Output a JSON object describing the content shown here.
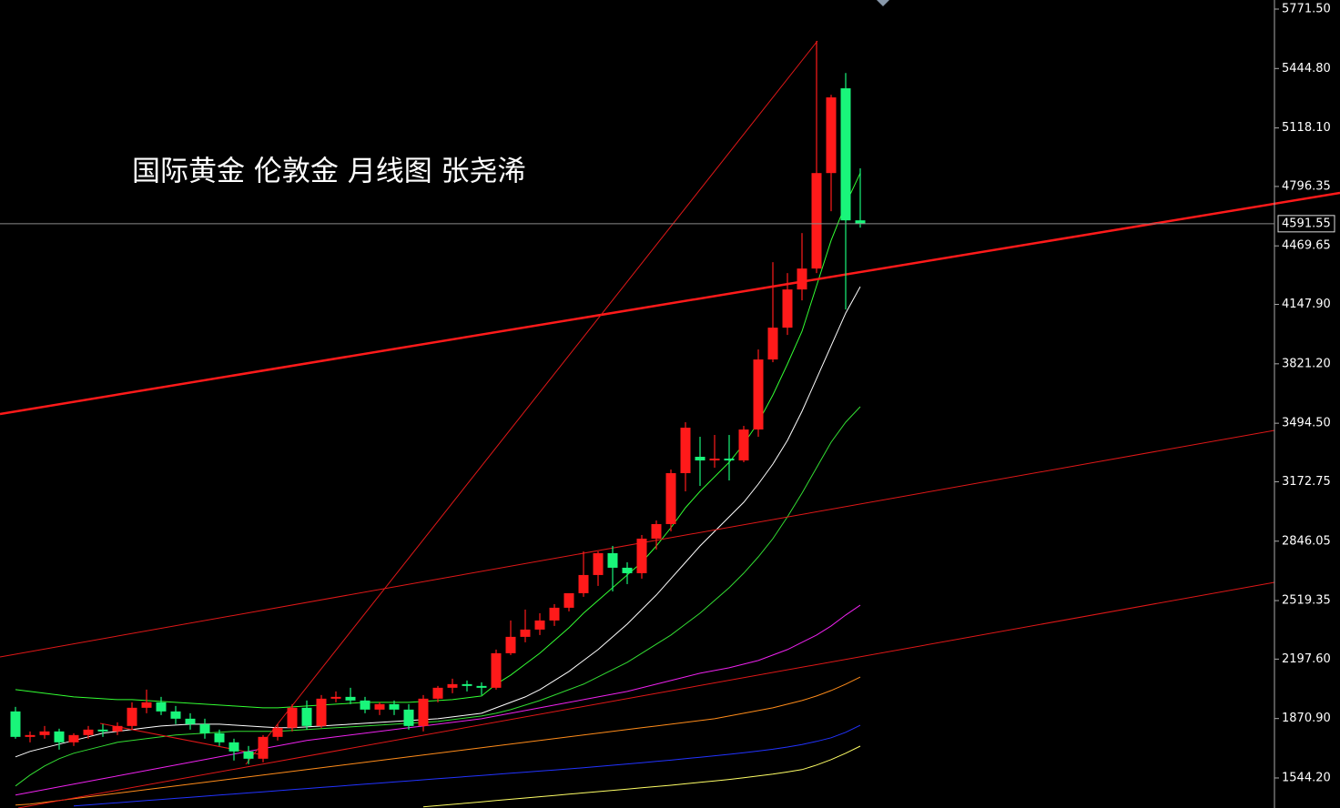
{
  "chart_data": {
    "type": "candlestick",
    "title": "国际黄金 伦敦金  月线图 张尧浠",
    "ylim": [
      1379,
      5821.5
    ],
    "yticks": [
      {
        "value": 5771.5,
        "label": "5771.50"
      },
      {
        "value": 5444.8,
        "label": "5444.80"
      },
      {
        "value": 5118.1,
        "label": "5118.10"
      },
      {
        "value": 4796.35,
        "label": "4796.35"
      },
      {
        "value": 4469.65,
        "label": "4469.65"
      },
      {
        "value": 4147.9,
        "label": "4147.90"
      },
      {
        "value": 3821.2,
        "label": "3821.20"
      },
      {
        "value": 3494.5,
        "label": "3494.50"
      },
      {
        "value": 3172.75,
        "label": "3172.75"
      },
      {
        "value": 2846.05,
        "label": "2846.05"
      },
      {
        "value": 2519.35,
        "label": "2519.35"
      },
      {
        "value": 2197.6,
        "label": "2197.60"
      },
      {
        "value": 1870.9,
        "label": "1870.90"
      },
      {
        "value": 1544.2,
        "label": "1544.20"
      }
    ],
    "last_price": 4591.55,
    "up_color": "#ff1a1a",
    "down_color": "#19f57a",
    "open": [
      1910,
      1770,
      1780,
      1800,
      1740,
      1780,
      1810,
      1800,
      1830,
      1930,
      1960,
      1910,
      1870,
      1840,
      1790,
      1740,
      1690,
      1650,
      1770,
      1820,
      1930,
      1830,
      1980,
      1990,
      1970,
      1920,
      1950,
      1920,
      1830,
      1980,
      2040,
      2060,
      2050,
      2040,
      2230,
      2320,
      2360,
      2410,
      2480,
      2560,
      2660,
      2780,
      2700,
      2670,
      2860,
      2940,
      3220,
      3310,
      3290,
      3300,
      3290,
      3460,
      3845,
      4020,
      4230,
      4345,
      4870,
      5336,
      4610
    ],
    "high": [
      1935,
      1800,
      1830,
      1815,
      1790,
      1830,
      1840,
      1850,
      1960,
      2030,
      1990,
      1940,
      1900,
      1870,
      1810,
      1760,
      1720,
      1780,
      1840,
      1950,
      1970,
      2000,
      2020,
      2040,
      1990,
      1960,
      1970,
      1950,
      2000,
      2050,
      2090,
      2080,
      2070,
      2250,
      2410,
      2470,
      2450,
      2500,
      2560,
      2790,
      2790,
      2820,
      2730,
      2880,
      2960,
      3240,
      3500,
      3420,
      3430,
      3430,
      3480,
      3900,
      4380,
      4320,
      4540,
      5596,
      5300,
      5420,
      4896
    ],
    "low": [
      1760,
      1740,
      1760,
      1700,
      1720,
      1760,
      1770,
      1780,
      1810,
      1900,
      1890,
      1840,
      1810,
      1760,
      1720,
      1640,
      1620,
      1630,
      1750,
      1800,
      1810,
      1820,
      1960,
      1950,
      1900,
      1890,
      1890,
      1810,
      1800,
      1960,
      2010,
      2020,
      2000,
      2030,
      2220,
      2290,
      2330,
      2380,
      2460,
      2540,
      2600,
      2570,
      2610,
      2640,
      2800,
      2900,
      3120,
      3150,
      3250,
      3180,
      3280,
      3420,
      3830,
      3980,
      4170,
      4320,
      4660,
      4120,
      4570
    ],
    "close": [
      1770,
      1780,
      1800,
      1740,
      1780,
      1810,
      1800,
      1830,
      1930,
      1960,
      1910,
      1870,
      1840,
      1790,
      1740,
      1690,
      1650,
      1770,
      1820,
      1930,
      1830,
      1980,
      1990,
      1970,
      1920,
      1950,
      1920,
      1830,
      1980,
      2040,
      2060,
      2050,
      2040,
      2230,
      2320,
      2360,
      2410,
      2480,
      2560,
      2660,
      2780,
      2700,
      2670,
      2860,
      2940,
      3220,
      3470,
      3290,
      3300,
      3290,
      3460,
      3845,
      4020,
      4230,
      4345,
      4870,
      5286,
      4610,
      4591.55
    ],
    "lines": [
      {
        "color": "#33ff33",
        "values": [
          2030,
          2020,
          2010,
          2000,
          1990,
          1985,
          1980,
          1975,
          1975,
          1970,
          1965,
          1960,
          1955,
          1950,
          1945,
          1940,
          1935,
          1930,
          1930,
          1935,
          1940,
          1945,
          1950,
          1955,
          1960,
          1960,
          1960,
          1960,
          1965,
          1970,
          1975,
          1985,
          1995,
          2060,
          2110,
          2170,
          2230,
          2300,
          2370,
          2450,
          2520,
          2590,
          2660,
          2730,
          2820,
          2920,
          3030,
          3120,
          3200,
          3280,
          3380,
          3500,
          3650,
          3820,
          4000,
          4250,
          4500,
          4700,
          4870
        ]
      },
      {
        "color": "#ffffff",
        "values": [
          1660,
          1690,
          1710,
          1730,
          1750,
          1770,
          1790,
          1800,
          1810,
          1820,
          1830,
          1835,
          1840,
          1840,
          1840,
          1835,
          1830,
          1825,
          1820,
          1820,
          1825,
          1830,
          1835,
          1840,
          1845,
          1850,
          1855,
          1860,
          1865,
          1870,
          1880,
          1890,
          1900,
          1930,
          1960,
          1990,
          2030,
          2080,
          2130,
          2190,
          2250,
          2320,
          2390,
          2470,
          2550,
          2640,
          2730,
          2820,
          2900,
          2980,
          3060,
          3160,
          3270,
          3400,
          3560,
          3740,
          3920,
          4100,
          4245
        ]
      },
      {
        "color": "#33dd33",
        "values": [
          1500,
          1560,
          1610,
          1650,
          1680,
          1700,
          1720,
          1740,
          1750,
          1760,
          1770,
          1780,
          1785,
          1790,
          1795,
          1800,
          1800,
          1800,
          1800,
          1805,
          1810,
          1815,
          1820,
          1825,
          1830,
          1835,
          1840,
          1845,
          1850,
          1855,
          1865,
          1875,
          1885,
          1900,
          1920,
          1945,
          1970,
          2000,
          2030,
          2060,
          2100,
          2140,
          2180,
          2230,
          2280,
          2330,
          2390,
          2450,
          2520,
          2590,
          2670,
          2760,
          2860,
          2980,
          3110,
          3250,
          3390,
          3500,
          3585
        ]
      },
      {
        "color": "#ee22ee",
        "values": [
          1450,
          1465,
          1480,
          1495,
          1510,
          1525,
          1540,
          1555,
          1570,
          1585,
          1600,
          1615,
          1630,
          1645,
          1660,
          1675,
          1690,
          1705,
          1720,
          1735,
          1750,
          1760,
          1770,
          1780,
          1790,
          1800,
          1810,
          1820,
          1830,
          1840,
          1850,
          1860,
          1870,
          1885,
          1900,
          1915,
          1930,
          1945,
          1960,
          1975,
          1990,
          2005,
          2020,
          2040,
          2060,
          2080,
          2100,
          2120,
          2135,
          2150,
          2170,
          2190,
          2220,
          2250,
          2290,
          2330,
          2380,
          2440,
          2494
        ]
      },
      {
        "color": "#ff8c1a",
        "values": [
          1395,
          1400,
          1410,
          1420,
          1430,
          1440,
          1450,
          1460,
          1470,
          1480,
          1490,
          1500,
          1510,
          1520,
          1530,
          1540,
          1550,
          1560,
          1570,
          1580,
          1590,
          1600,
          1610,
          1620,
          1630,
          1640,
          1650,
          1660,
          1670,
          1680,
          1690,
          1700,
          1710,
          1720,
          1730,
          1740,
          1750,
          1760,
          1770,
          1780,
          1790,
          1800,
          1810,
          1820,
          1830,
          1840,
          1850,
          1860,
          1870,
          1885,
          1900,
          1915,
          1930,
          1950,
          1970,
          1995,
          2025,
          2060,
          2099
        ]
      },
      {
        "color": "#2233ff",
        "values": [
          null,
          null,
          null,
          null,
          1390,
          1396,
          1402,
          1408,
          1414,
          1420,
          1426,
          1432,
          1438,
          1444,
          1450,
          1456,
          1462,
          1468,
          1474,
          1480,
          1486,
          1492,
          1498,
          1504,
          1510,
          1516,
          1522,
          1528,
          1534,
          1540,
          1546,
          1552,
          1558,
          1564,
          1570,
          1576,
          1582,
          1588,
          1594,
          1600,
          1607,
          1614,
          1621,
          1628,
          1635,
          1642,
          1650,
          1658,
          1666,
          1674,
          1683,
          1692,
          1702,
          1714,
          1728,
          1745,
          1765,
          1795,
          1834
        ]
      },
      {
        "color": "#ffff66",
        "values": [
          null,
          null,
          null,
          null,
          null,
          null,
          null,
          null,
          null,
          null,
          null,
          null,
          null,
          null,
          null,
          null,
          null,
          null,
          null,
          null,
          null,
          null,
          null,
          null,
          null,
          null,
          null,
          null,
          1385,
          1392,
          1399,
          1406,
          1413,
          1420,
          1427,
          1434,
          1441,
          1448,
          1455,
          1462,
          1469,
          1476,
          1483,
          1490,
          1497,
          1504,
          1512,
          1520,
          1528,
          1536,
          1545,
          1555,
          1565,
          1577,
          1590,
          1615,
          1645,
          1680,
          1719
        ]
      }
    ]
  }
}
